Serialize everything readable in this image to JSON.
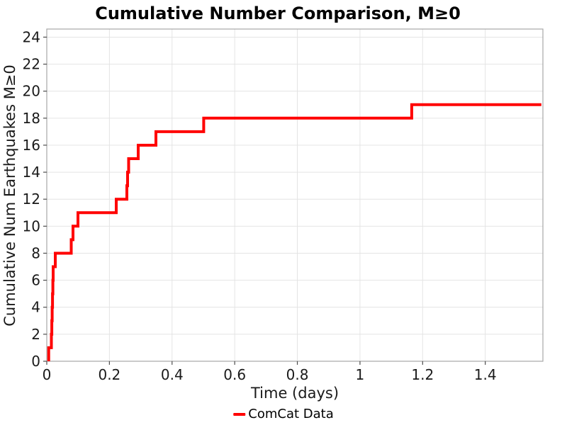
{
  "chart_data": {
    "type": "line",
    "step_mode": "post",
    "title": "Cumulative Number Comparison, M≥0",
    "xlabel": "Time (days)",
    "ylabel": "Cumulative Num Earthquakes M≥0",
    "xlim": [
      0,
      1.584
    ],
    "ylim": [
      0,
      24.6
    ],
    "grid": true,
    "x_ticks": [
      {
        "v": 0,
        "label": "0"
      },
      {
        "v": 0.2,
        "label": "0.2"
      },
      {
        "v": 0.4,
        "label": "0.4"
      },
      {
        "v": 0.6,
        "label": "0.6"
      },
      {
        "v": 0.8,
        "label": "0.8"
      },
      {
        "v": 1,
        "label": "1"
      },
      {
        "v": 1.2,
        "label": "1.2"
      },
      {
        "v": 1.4,
        "label": "1.4"
      }
    ],
    "y_ticks": [
      {
        "v": 0,
        "label": "0"
      },
      {
        "v": 2,
        "label": "2"
      },
      {
        "v": 4,
        "label": "4"
      },
      {
        "v": 6,
        "label": "6"
      },
      {
        "v": 8,
        "label": "8"
      },
      {
        "v": 10,
        "label": "10"
      },
      {
        "v": 12,
        "label": "12"
      },
      {
        "v": 14,
        "label": "14"
      },
      {
        "v": 16,
        "label": "16"
      },
      {
        "v": 18,
        "label": "18"
      },
      {
        "v": 20,
        "label": "20"
      },
      {
        "v": 22,
        "label": "22"
      },
      {
        "v": 24,
        "label": "24"
      }
    ],
    "colors": {
      "grid": "#e4e4e4",
      "border": "#a6a6a6",
      "tick": "#4d4d4d",
      "text": "#1a1a1a",
      "series_red": "#ff0000"
    },
    "series": [
      {
        "name": "ComCat Data",
        "color": "#ff0000",
        "line_width": 4,
        "start_t": 0.006,
        "end_t": 1.579,
        "final_count": 19,
        "events": [
          {
            "t": 0.006,
            "n": 1
          },
          {
            "t": 0.0147,
            "n": 2
          },
          {
            "t": 0.016,
            "n": 3
          },
          {
            "t": 0.0172,
            "n": 4
          },
          {
            "t": 0.0183,
            "n": 5
          },
          {
            "t": 0.0194,
            "n": 6
          },
          {
            "t": 0.0204,
            "n": 7
          },
          {
            "t": 0.0271,
            "n": 8
          },
          {
            "t": 0.0781,
            "n": 9
          },
          {
            "t": 0.0837,
            "n": 10
          },
          {
            "t": 0.0995,
            "n": 11
          },
          {
            "t": 0.2217,
            "n": 12
          },
          {
            "t": 0.2557,
            "n": 13
          },
          {
            "t": 0.2579,
            "n": 14
          },
          {
            "t": 0.2613,
            "n": 15
          },
          {
            "t": 0.2919,
            "n": 16
          },
          {
            "t": 0.3484,
            "n": 17
          },
          {
            "t": 0.5011,
            "n": 18
          },
          {
            "t": 1.1652,
            "n": 19
          }
        ]
      }
    ],
    "legend": {
      "position": "bottom-center",
      "entries": [
        {
          "label": "ComCat Data",
          "color": "#ff0000"
        }
      ]
    }
  }
}
